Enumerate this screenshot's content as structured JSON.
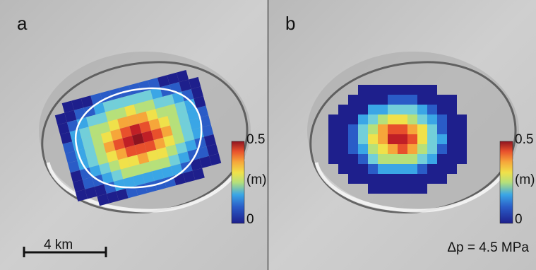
{
  "figure": {
    "panels": [
      {
        "label": "a",
        "colorbar": {
          "max_label": "0.5",
          "unit_label": "(m)",
          "min_label": "0"
        },
        "scale_bar": {
          "label": "4 km"
        }
      },
      {
        "label": "b",
        "colorbar": {
          "max_label": "0.5",
          "unit_label": "(m)",
          "min_label": "0"
        },
        "pressure_label": "Δp = 4.5 MPa"
      }
    ],
    "colormap": [
      "#1e1f8c",
      "#2a5cc7",
      "#3aa6e6",
      "#72cfd9",
      "#b6e07a",
      "#f0e14a",
      "#f6a63a",
      "#e8502c",
      "#c01f26",
      "#8e1420"
    ]
  }
}
